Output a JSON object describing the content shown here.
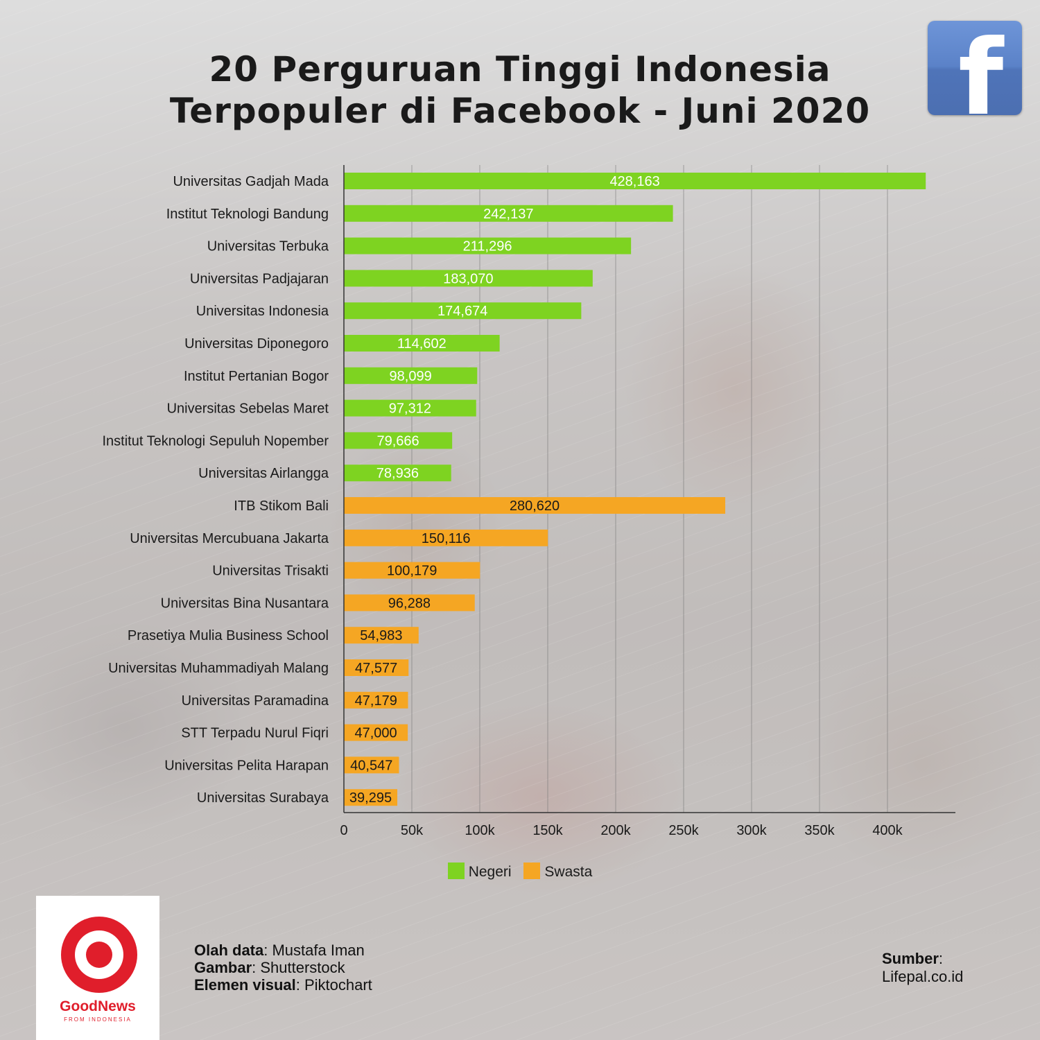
{
  "title_line1": "20 Perguruan Tinggi Indonesia",
  "title_line2": "Terpopuler di Facebook - Juni 2020",
  "logo_letter": "f",
  "chart_data": {
    "type": "bar",
    "orientation": "horizontal",
    "categories": [
      "Universitas Gadjah Mada",
      "Institut Teknologi Bandung",
      "Universitas Terbuka",
      "Universitas Padjajaran",
      "Universitas Indonesia",
      "Universitas Diponegoro",
      "Institut Pertanian Bogor",
      "Universitas Sebelas Maret",
      "Institut Teknologi Sepuluh Nopember",
      "Universitas Airlangga",
      "ITB Stikom Bali",
      "Universitas Mercubuana Jakarta",
      "Universitas Trisakti",
      "Universitas Bina Nusantara",
      "Prasetiya Mulia Business School",
      "Universitas Muhammadiyah Malang",
      "Universitas Paramadina",
      "STT Terpadu Nurul Fiqri",
      "Universitas Pelita Harapan",
      "Universitas Surabaya"
    ],
    "values": [
      428163,
      242137,
      211296,
      183070,
      174674,
      114602,
      98099,
      97312,
      79666,
      78936,
      280620,
      150116,
      100179,
      96288,
      54983,
      47577,
      47179,
      47000,
      40547,
      39295
    ],
    "value_labels": [
      "428,163",
      "242,137",
      "211,296",
      "183,070",
      "174,674",
      "114,602",
      "98,099",
      "97,312",
      "79,666",
      "78,936",
      "280,620",
      "150,116",
      "100,179",
      "96,288",
      "54,983",
      "47,577",
      "47,179",
      "47,000",
      "40,547",
      "39,295"
    ],
    "groups": [
      "Negeri",
      "Negeri",
      "Negeri",
      "Negeri",
      "Negeri",
      "Negeri",
      "Negeri",
      "Negeri",
      "Negeri",
      "Negeri",
      "Swasta",
      "Swasta",
      "Swasta",
      "Swasta",
      "Swasta",
      "Swasta",
      "Swasta",
      "Swasta",
      "Swasta",
      "Swasta"
    ],
    "series": [
      {
        "name": "Negeri",
        "color": "#7ed321",
        "label_color": "#ffffff"
      },
      {
        "name": "Swasta",
        "color": "#f5a623",
        "label_color": "#1a1a1a"
      }
    ],
    "xlim": [
      0,
      450000
    ],
    "xticks": [
      0,
      50000,
      100000,
      150000,
      200000,
      250000,
      300000,
      350000,
      400000
    ],
    "xtick_labels": [
      "0",
      "50k",
      "100k",
      "150k",
      "200k",
      "250k",
      "300k",
      "350k",
      "400k"
    ],
    "grid": "vertical",
    "legend_position": "bottom-center"
  },
  "legend": {
    "negeri": "Negeri",
    "swasta": "Swasta"
  },
  "brand": {
    "name": "GoodNews",
    "tagline": "FROM INDONESIA"
  },
  "credits": {
    "data_label": "Olah data",
    "data_value": ": Mustafa Iman",
    "image_label": "Gambar",
    "image_value": ": Shutterstock",
    "visual_label": "Elemen visual",
    "visual_value": ": Piktochart"
  },
  "source": {
    "label": "Sumber",
    "colon": ":",
    "value": "Lifepal.co.id"
  }
}
